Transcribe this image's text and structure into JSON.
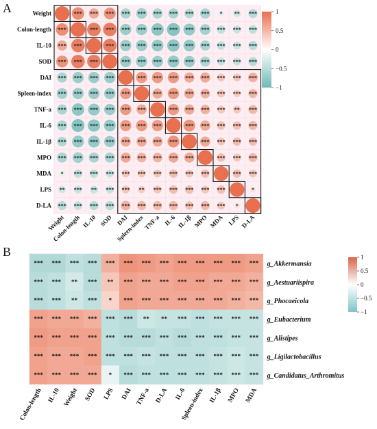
{
  "panels": {
    "a": "A",
    "b": "B"
  },
  "colors": {
    "negative": "#6fb9b5",
    "zero": "#ffffff",
    "positive": "#e8704f"
  },
  "chart_data": [
    {
      "type": "heatmap",
      "style": "circle-correlogram",
      "variables": [
        "Weight",
        "Colon-length",
        "IL-10",
        "SOD",
        "DAI",
        "Spleen-index",
        "TNF-a",
        "IL-6",
        "IL-1β",
        "MPO",
        "MDA",
        "LPS",
        "D-LA"
      ],
      "groups": [
        4,
        9
      ],
      "colorbar": {
        "range": [
          -1,
          1
        ],
        "ticks": [
          "1",
          "0.5",
          "0",
          "−0.5",
          "−1"
        ]
      },
      "significance": "***",
      "matrix": [
        [
          1.0,
          0.8,
          0.6,
          0.75,
          -0.6,
          -0.65,
          -0.6,
          -0.6,
          -0.55,
          -0.6,
          -0.2,
          -0.35,
          -0.5
        ],
        [
          0.8,
          1.0,
          0.9,
          0.9,
          -0.7,
          -0.7,
          -0.8,
          -0.85,
          -0.75,
          -0.65,
          -0.45,
          -0.4,
          -0.45
        ],
        [
          0.6,
          0.9,
          1.0,
          0.9,
          -0.7,
          -0.7,
          -0.75,
          -0.8,
          -0.75,
          -0.6,
          -0.45,
          -0.4,
          -0.5
        ],
        [
          0.75,
          0.9,
          0.9,
          1.0,
          -0.7,
          -0.7,
          -0.7,
          -0.75,
          -0.7,
          -0.6,
          -0.4,
          -0.4,
          -0.5
        ],
        [
          -0.6,
          -0.7,
          -0.7,
          -0.7,
          1.0,
          0.7,
          0.7,
          0.7,
          0.6,
          0.6,
          0.4,
          0.4,
          0.55
        ],
        [
          -0.65,
          -0.7,
          -0.7,
          -0.7,
          0.7,
          1.0,
          0.6,
          0.7,
          0.6,
          0.55,
          0.4,
          0.35,
          0.5
        ],
        [
          -0.6,
          -0.8,
          -0.75,
          -0.7,
          0.7,
          0.6,
          1.0,
          0.7,
          0.6,
          0.55,
          0.4,
          0.4,
          0.5
        ],
        [
          -0.6,
          -0.85,
          -0.8,
          -0.75,
          0.7,
          0.7,
          0.7,
          1.0,
          0.75,
          0.6,
          0.45,
          0.45,
          0.5
        ],
        [
          -0.55,
          -0.75,
          -0.75,
          -0.7,
          0.6,
          0.6,
          0.6,
          0.75,
          1.0,
          0.6,
          0.4,
          0.45,
          0.45
        ],
        [
          -0.6,
          -0.65,
          -0.6,
          -0.6,
          0.6,
          0.55,
          0.55,
          0.6,
          0.6,
          1.0,
          0.45,
          0.4,
          0.5
        ],
        [
          -0.2,
          -0.45,
          -0.45,
          -0.4,
          0.4,
          0.4,
          0.4,
          0.45,
          0.4,
          0.45,
          1.0,
          0.45,
          0.4
        ],
        [
          -0.35,
          -0.4,
          -0.4,
          -0.4,
          0.4,
          0.35,
          0.4,
          0.45,
          0.45,
          0.4,
          0.45,
          1.0,
          0.2
        ],
        [
          -0.5,
          -0.45,
          -0.5,
          -0.5,
          0.55,
          0.5,
          0.5,
          0.5,
          0.45,
          0.5,
          0.4,
          0.2,
          1.0
        ]
      ],
      "stars": [
        [
          "",
          "***",
          "***",
          "***",
          "***",
          "***",
          "***",
          "***",
          "***",
          "***",
          "*",
          "**",
          "***"
        ],
        [
          "***",
          "",
          "***",
          "***",
          "***",
          "***",
          "***",
          "***",
          "***",
          "***",
          "***",
          "***",
          "***"
        ],
        [
          "***",
          "***",
          "",
          "***",
          "***",
          "***",
          "***",
          "***",
          "***",
          "***",
          "***",
          "***",
          "***"
        ],
        [
          "***",
          "***",
          "***",
          "",
          "***",
          "***",
          "***",
          "***",
          "***",
          "***",
          "***",
          "***",
          "***"
        ],
        [
          "***",
          "***",
          "***",
          "***",
          "",
          "***",
          "***",
          "***",
          "***",
          "***",
          "***",
          "***",
          "***"
        ],
        [
          "***",
          "***",
          "***",
          "***",
          "***",
          "",
          "***",
          "***",
          "***",
          "***",
          "***",
          "***",
          "***"
        ],
        [
          "***",
          "***",
          "***",
          "***",
          "***",
          "***",
          "",
          "***",
          "***",
          "***",
          "***",
          "**",
          "***"
        ],
        [
          "***",
          "***",
          "***",
          "***",
          "***",
          "***",
          "***",
          "",
          "***",
          "***",
          "***",
          "***",
          "***"
        ],
        [
          "***",
          "***",
          "***",
          "***",
          "***",
          "***",
          "***",
          "***",
          "",
          "***",
          "***",
          "***",
          "***"
        ],
        [
          "***",
          "***",
          "***",
          "***",
          "***",
          "***",
          "***",
          "***",
          "***",
          "",
          "***",
          "***",
          "***"
        ],
        [
          "*",
          "***",
          "***",
          "***",
          "***",
          "***",
          "***",
          "***",
          "***",
          "***",
          "",
          "***",
          "***"
        ],
        [
          "**",
          "***",
          "**",
          "***",
          "***",
          "**",
          "***",
          "***",
          "***",
          "***",
          "***",
          "",
          "*"
        ],
        [
          "***",
          "***",
          "***",
          "***",
          "***",
          "***",
          "***",
          "***",
          "***",
          "***",
          "***",
          "*",
          ""
        ]
      ]
    },
    {
      "type": "heatmap",
      "x": [
        "Colon-length",
        "IL-10",
        "Weight",
        "SOD",
        "LPS",
        "DAI",
        "TNF-a",
        "D-LA",
        "IL-6",
        "Spleen-index",
        "IL-1β",
        "MPO",
        "MDA"
      ],
      "y": [
        "g_Akkermansia",
        "g_Aestuariispira",
        "g_Phocaeicola",
        "g_Eubacterium",
        "g_Alistipes",
        "g_Ligilactobacillus",
        "g_Candidatus_Arthromitus"
      ],
      "colorbar": {
        "range": [
          -1,
          1
        ],
        "ticks": [
          "1",
          "0.5",
          "0",
          "−0.5",
          "−1"
        ]
      },
      "values": [
        [
          -0.55,
          -0.55,
          -0.45,
          -0.5,
          0.55,
          0.75,
          0.7,
          0.65,
          0.7,
          0.7,
          0.7,
          0.7,
          0.65
        ],
        [
          -0.5,
          -0.45,
          -0.3,
          -0.5,
          0.4,
          0.65,
          0.6,
          0.6,
          0.65,
          0.65,
          0.6,
          0.6,
          0.55
        ],
        [
          -0.5,
          -0.45,
          -0.35,
          -0.45,
          0.3,
          0.65,
          0.6,
          0.6,
          0.6,
          0.6,
          0.6,
          0.55,
          0.5
        ],
        [
          0.65,
          0.6,
          0.6,
          0.55,
          -0.45,
          -0.5,
          -0.35,
          -0.4,
          -0.4,
          -0.45,
          -0.4,
          -0.4,
          -0.4
        ],
        [
          0.7,
          0.65,
          0.65,
          0.65,
          -0.45,
          -0.5,
          -0.5,
          -0.45,
          -0.5,
          -0.45,
          -0.45,
          -0.4,
          -0.4
        ],
        [
          0.65,
          0.6,
          0.6,
          0.65,
          -0.45,
          -0.45,
          -0.4,
          -0.45,
          -0.45,
          -0.45,
          -0.4,
          -0.35,
          -0.4
        ],
        [
          0.65,
          0.6,
          0.6,
          0.6,
          -0.15,
          -0.5,
          -0.45,
          -0.45,
          -0.45,
          -0.45,
          -0.4,
          -0.35,
          -0.4
        ]
      ],
      "stars": [
        [
          "***",
          "***",
          "***",
          "***",
          "***",
          "***",
          "***",
          "***",
          "***",
          "***",
          "***",
          "***",
          "***"
        ],
        [
          "***",
          "***",
          "**",
          "***",
          "**",
          "***",
          "***",
          "***",
          "***",
          "***",
          "***",
          "***",
          "***"
        ],
        [
          "***",
          "***",
          "**",
          "***",
          "*",
          "***",
          "***",
          "***",
          "***",
          "***",
          "***",
          "***",
          "***"
        ],
        [
          "***",
          "***",
          "***",
          "***",
          "***",
          "***",
          "**",
          "**",
          "***",
          "***",
          "***",
          "***",
          "***"
        ],
        [
          "***",
          "***",
          "***",
          "***",
          "***",
          "***",
          "***",
          "***",
          "***",
          "***",
          "***",
          "***",
          "***"
        ],
        [
          "***",
          "***",
          "***",
          "***",
          "***",
          "***",
          "***",
          "***",
          "***",
          "***",
          "***",
          "***",
          "***"
        ],
        [
          "***",
          "***",
          "***",
          "***",
          "*",
          "***",
          "***",
          "***",
          "***",
          "***",
          "***",
          "***",
          "***"
        ]
      ]
    }
  ]
}
